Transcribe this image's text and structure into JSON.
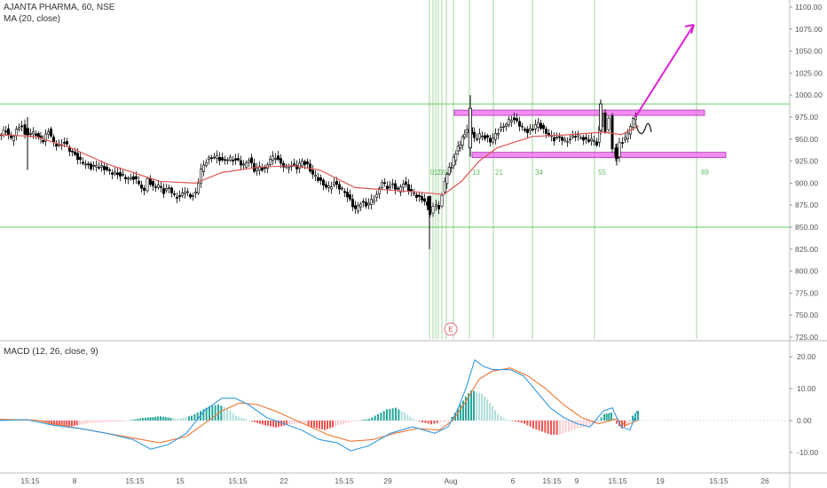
{
  "header": {
    "symbol_line": "AJANTA PHARMA, 60, NSE",
    "ma_line": "MA (20, close)",
    "macd_line": "MACD (12, 26, close, 9)"
  },
  "colors": {
    "up_candle": "#ffffff",
    "down_candle": "#000000",
    "ma": "#e05555",
    "hline": "#66cc66",
    "fib": "#88cc88",
    "box": "#ee66ee",
    "arrow": "#e020d0",
    "macd_line": "#3399dd",
    "signal_line": "#ee7733",
    "hist_up_strong": "#26a69a",
    "hist_up_weak": "#b2dfdb",
    "hist_down_strong": "#ef5350",
    "hist_down_weak": "#ffcdd2"
  },
  "chart_data": [
    {
      "type": "candlestick",
      "price_axis": {
        "ylim": [
          725,
          1100
        ],
        "ticks": [
          "1100.00",
          "1075.00",
          "1050.00",
          "1025.00",
          "1000.00",
          "975.00",
          "950.00",
          "925.00",
          "900.00",
          "875.00",
          "850.00",
          "825.00",
          "800.00",
          "775.00",
          "750.00",
          "725.00"
        ]
      },
      "time_axis": {
        "ticks": [
          "15:15",
          "8",
          "15:15",
          "15",
          "15:15",
          "22",
          "15:15",
          "29",
          "Aug",
          "6",
          "15:15",
          "9",
          "15:15",
          "19",
          "15:15",
          "26"
        ]
      },
      "price_path": [
        [
          0,
          955
        ],
        [
          8,
          960
        ],
        [
          14,
          950
        ],
        [
          20,
          960
        ],
        [
          26,
          966
        ],
        [
          30,
          955
        ],
        [
          36,
          958
        ],
        [
          42,
          955
        ],
        [
          50,
          948
        ],
        [
          56,
          960
        ],
        [
          62,
          946
        ],
        [
          68,
          942
        ],
        [
          74,
          947
        ],
        [
          80,
          938
        ],
        [
          86,
          932
        ],
        [
          92,
          925
        ],
        [
          98,
          922
        ],
        [
          104,
          918
        ],
        [
          110,
          920
        ],
        [
          116,
          918
        ],
        [
          122,
          915
        ],
        [
          128,
          912
        ],
        [
          134,
          910
        ],
        [
          140,
          908
        ],
        [
          146,
          905
        ],
        [
          152,
          906
        ],
        [
          158,
          900
        ],
        [
          164,
          890
        ],
        [
          168,
          905
        ],
        [
          174,
          895
        ],
        [
          180,
          898
        ],
        [
          186,
          890
        ],
        [
          192,
          895
        ],
        [
          198,
          885
        ],
        [
          204,
          884
        ],
        [
          210,
          892
        ],
        [
          216,
          885
        ],
        [
          222,
          888
        ],
        [
          228,
          915
        ],
        [
          234,
          925
        ],
        [
          240,
          930
        ],
        [
          246,
          930
        ],
        [
          252,
          925
        ],
        [
          258,
          928
        ],
        [
          264,
          927
        ],
        [
          270,
          925
        ],
        [
          276,
          920
        ],
        [
          282,
          927
        ],
        [
          288,
          915
        ],
        [
          294,
          918
        ],
        [
          300,
          915
        ],
        [
          306,
          928
        ],
        [
          312,
          930
        ],
        [
          318,
          922
        ],
        [
          324,
          918
        ],
        [
          330,
          920
        ],
        [
          336,
          918
        ],
        [
          342,
          925
        ],
        [
          348,
          920
        ],
        [
          354,
          910
        ],
        [
          360,
          905
        ],
        [
          366,
          898
        ],
        [
          372,
          895
        ],
        [
          378,
          900
        ],
        [
          384,
          895
        ],
        [
          390,
          890
        ],
        [
          396,
          880
        ],
        [
          402,
          870
        ],
        [
          408,
          878
        ],
        [
          414,
          875
        ],
        [
          420,
          880
        ],
        [
          426,
          886
        ],
        [
          432,
          902
        ],
        [
          438,
          895
        ],
        [
          444,
          898
        ],
        [
          450,
          892
        ],
        [
          456,
          900
        ],
        [
          462,
          893
        ],
        [
          468,
          888
        ],
        [
          474,
          883
        ],
        [
          480,
          880
        ],
        [
          486,
          866
        ],
        [
          490,
          875
        ],
        [
          496,
          872
        ],
        [
          500,
          888
        ],
        [
          505,
          912
        ],
        [
          510,
          920
        ],
        [
          515,
          935
        ],
        [
          520,
          945
        ],
        [
          525,
          957
        ],
        [
          530,
          962
        ],
        [
          536,
          950
        ],
        [
          542,
          955
        ],
        [
          548,
          952
        ],
        [
          554,
          948
        ],
        [
          560,
          955
        ],
        [
          566,
          962
        ],
        [
          572,
          968
        ],
        [
          578,
          973
        ],
        [
          584,
          970
        ],
        [
          590,
          963
        ],
        [
          596,
          958
        ],
        [
          602,
          963
        ],
        [
          608,
          968
        ],
        [
          614,
          960
        ],
        [
          620,
          955
        ],
        [
          626,
          950
        ],
        [
          632,
          952
        ],
        [
          638,
          948
        ],
        [
          644,
          950
        ],
        [
          650,
          955
        ],
        [
          656,
          952
        ],
        [
          662,
          948
        ],
        [
          668,
          950
        ],
        [
          674,
          945
        ],
        [
          680,
          980
        ],
        [
          684,
          960
        ],
        [
          688,
          975
        ],
        [
          692,
          938
        ],
        [
          696,
          928
        ],
        [
          700,
          945
        ],
        [
          706,
          950
        ],
        [
          712,
          965
        ],
        [
          718,
          978
        ]
      ],
      "anchor_candles": [
        {
          "x": 31,
          "open": 962,
          "close": 955,
          "high": 975,
          "low": 915
        },
        {
          "x": 484,
          "open": 885,
          "close": 870,
          "high": 872,
          "low": 825
        },
        {
          "x": 530,
          "open": 940,
          "close": 985,
          "high": 1000,
          "low": 930
        },
        {
          "x": 677,
          "open": 960,
          "close": 990,
          "high": 995,
          "low": 955
        },
        {
          "x": 695,
          "open": 940,
          "close": 928,
          "high": 945,
          "low": 920
        }
      ],
      "ma_series_pct": [
        [
          0,
          955
        ],
        [
          40,
          953
        ],
        [
          80,
          940
        ],
        [
          120,
          922
        ],
        [
          150,
          912
        ],
        [
          180,
          902
        ],
        [
          220,
          900
        ],
        [
          250,
          912
        ],
        [
          290,
          918
        ],
        [
          330,
          920
        ],
        [
          360,
          915
        ],
        [
          400,
          895
        ],
        [
          440,
          892
        ],
        [
          470,
          890
        ],
        [
          500,
          887
        ],
        [
          520,
          902
        ],
        [
          540,
          925
        ],
        [
          560,
          940
        ],
        [
          600,
          953
        ],
        [
          640,
          955
        ],
        [
          680,
          958
        ],
        [
          700,
          955
        ],
        [
          720,
          965
        ]
      ],
      "horizontal_levels": [
        990,
        850
      ],
      "zones": [
        {
          "label": "",
          "x_from": 512,
          "x_to": 794,
          "top": 983,
          "bottom": 977
        },
        {
          "label": "",
          "x_from": 532,
          "x_to": 818,
          "top": 935,
          "bottom": 929
        }
      ],
      "fib_time_labels": [
        "0",
        "1",
        "2",
        "3",
        "5",
        "8",
        "13",
        "21",
        "34",
        "55",
        "89"
      ],
      "fib_lines_x": [
        484,
        488,
        491,
        494,
        498,
        503,
        511,
        529,
        556,
        600,
        670,
        785
      ],
      "projection_arrow": {
        "from_price": 975,
        "to_price": 1080
      },
      "event_marker": "E"
    },
    {
      "type": "macd",
      "ylim": [
        -12,
        22
      ],
      "ticks": [
        "20.00",
        "10.00",
        "0.00",
        "-10.00"
      ],
      "macd": [
        [
          0,
          0
        ],
        [
          30,
          0.3
        ],
        [
          60,
          -1.5
        ],
        [
          90,
          -2.5
        ],
        [
          120,
          -4
        ],
        [
          150,
          -6
        ],
        [
          170,
          -9
        ],
        [
          190,
          -7.5
        ],
        [
          210,
          -4
        ],
        [
          230,
          3
        ],
        [
          250,
          7
        ],
        [
          265,
          7
        ],
        [
          280,
          5
        ],
        [
          300,
          1
        ],
        [
          320,
          -1
        ],
        [
          340,
          -3
        ],
        [
          360,
          -6
        ],
        [
          380,
          -7
        ],
        [
          395,
          -9.5
        ],
        [
          415,
          -8
        ],
        [
          440,
          -4
        ],
        [
          465,
          -2
        ],
        [
          490,
          -4
        ],
        [
          505,
          -2
        ],
        [
          515,
          3
        ],
        [
          525,
          10
        ],
        [
          535,
          19
        ],
        [
          545,
          17
        ],
        [
          555,
          16
        ],
        [
          575,
          16
        ],
        [
          590,
          14
        ],
        [
          605,
          9
        ],
        [
          620,
          4
        ],
        [
          635,
          1
        ],
        [
          650,
          -1
        ],
        [
          665,
          -2
        ],
        [
          680,
          3
        ],
        [
          690,
          4
        ],
        [
          700,
          -2
        ],
        [
          710,
          -3
        ],
        [
          718,
          3
        ]
      ],
      "signal": [
        [
          0,
          0.4
        ],
        [
          40,
          0.1
        ],
        [
          80,
          -2
        ],
        [
          120,
          -4
        ],
        [
          150,
          -5.5
        ],
        [
          180,
          -7
        ],
        [
          210,
          -5
        ],
        [
          230,
          -1
        ],
        [
          250,
          3
        ],
        [
          270,
          5.5
        ],
        [
          290,
          5
        ],
        [
          310,
          3
        ],
        [
          330,
          0.5
        ],
        [
          350,
          -2
        ],
        [
          370,
          -4.5
        ],
        [
          395,
          -6.5
        ],
        [
          420,
          -6
        ],
        [
          445,
          -4
        ],
        [
          470,
          -2.5
        ],
        [
          495,
          -3
        ],
        [
          510,
          0
        ],
        [
          525,
          6
        ],
        [
          540,
          13
        ],
        [
          555,
          15.5
        ],
        [
          575,
          16.5
        ],
        [
          595,
          14
        ],
        [
          615,
          10
        ],
        [
          635,
          5
        ],
        [
          655,
          1
        ],
        [
          675,
          -1
        ],
        [
          695,
          0.5
        ],
        [
          705,
          -1.5
        ],
        [
          718,
          0
        ]
      ],
      "histogram": [
        [
          0,
          0.3
        ],
        [
          20,
          0.4
        ],
        [
          40,
          0.2
        ],
        [
          60,
          -1.5
        ],
        [
          80,
          -1.8
        ],
        [
          100,
          -0.8
        ],
        [
          120,
          -0.5
        ],
        [
          140,
          -0.2
        ],
        [
          160,
          0.8
        ],
        [
          180,
          1.3
        ],
        [
          200,
          0.5
        ],
        [
          215,
          1.5
        ],
        [
          225,
          3
        ],
        [
          235,
          4.5
        ],
        [
          245,
          5
        ],
        [
          255,
          4
        ],
        [
          265,
          1.5
        ],
        [
          280,
          0
        ],
        [
          295,
          -1.3
        ],
        [
          310,
          -2.2
        ],
        [
          325,
          -1.2
        ],
        [
          340,
          -0.8
        ],
        [
          350,
          -2
        ],
        [
          365,
          -3
        ],
        [
          380,
          -1.5
        ],
        [
          395,
          -0.4
        ],
        [
          415,
          0.5
        ],
        [
          425,
          2
        ],
        [
          435,
          3.5
        ],
        [
          445,
          4
        ],
        [
          455,
          2.5
        ],
        [
          465,
          0.5
        ],
        [
          475,
          -0.6
        ],
        [
          485,
          -1.2
        ],
        [
          495,
          -0.6
        ],
        [
          505,
          -0.3
        ],
        [
          512,
          2.5
        ],
        [
          518,
          5
        ],
        [
          524,
          7.5
        ],
        [
          530,
          9.5
        ],
        [
          536,
          9
        ],
        [
          542,
          8.5
        ],
        [
          548,
          6.5
        ],
        [
          554,
          4.5
        ],
        [
          560,
          2
        ],
        [
          570,
          0.3
        ],
        [
          580,
          -0.3
        ],
        [
          590,
          -1
        ],
        [
          600,
          -2.5
        ],
        [
          610,
          -3.5
        ],
        [
          620,
          -4.5
        ],
        [
          630,
          -4.5
        ],
        [
          640,
          -3.5
        ],
        [
          650,
          -2.5
        ],
        [
          660,
          -2
        ],
        [
          670,
          -1
        ],
        [
          680,
          2
        ],
        [
          688,
          2.5
        ],
        [
          694,
          -1
        ],
        [
          700,
          -2.5
        ],
        [
          706,
          -1.5
        ],
        [
          712,
          1.5
        ],
        [
          718,
          3
        ]
      ]
    }
  ]
}
